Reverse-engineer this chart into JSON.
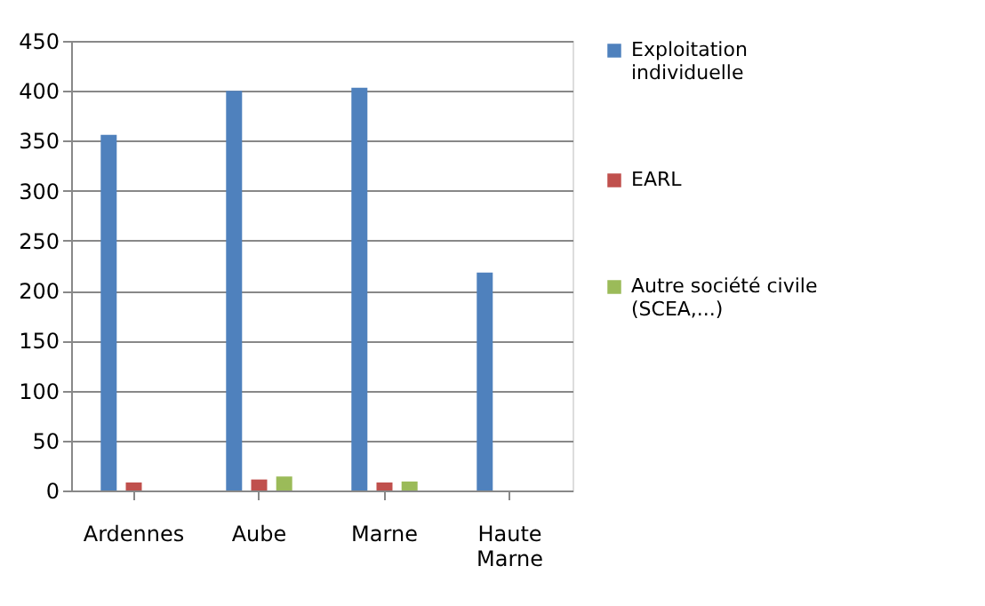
{
  "chart_data": {
    "type": "bar",
    "categories": [
      "Ardennes",
      "Aube",
      "Marne",
      "Haute Marne"
    ],
    "series": [
      {
        "name": "Exploitation individuelle",
        "color": "#4f81bd",
        "values": [
          356,
          400,
          403,
          218
        ]
      },
      {
        "name": "EARL",
        "color": "#c0504d",
        "values": [
          8,
          11,
          8,
          null
        ]
      },
      {
        "name": "Autre société civile (SCEA,...)",
        "color": "#9bbb59",
        "values": [
          null,
          14,
          9,
          null
        ]
      }
    ],
    "ylim": [
      0,
      450
    ],
    "yticks": [
      0,
      50,
      100,
      150,
      200,
      250,
      300,
      350,
      400,
      450
    ],
    "grid": "y",
    "legend": "right"
  }
}
